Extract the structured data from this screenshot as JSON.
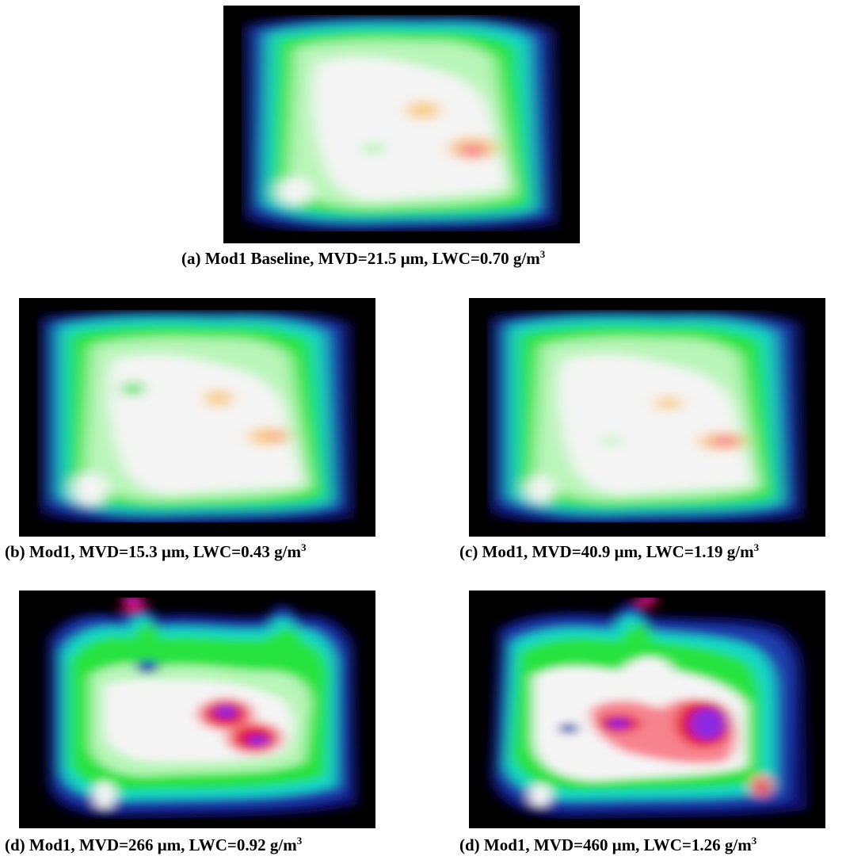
{
  "figure": {
    "panels": [
      {
        "label": "(a) Mod1 Baseline, MVD=21.5 μm, LWC=0.70 g/m",
        "sup": "3",
        "pattern": "baseline"
      },
      {
        "label": "(b) Mod1, MVD=15.3 μm, LWC=0.43 g/m",
        "sup": "3",
        "pattern": "small-drop"
      },
      {
        "label": "(c) Mod1, MVD=40.9 μm, LWC=1.19 g/m",
        "sup": "3",
        "pattern": "medium-drop"
      },
      {
        "label": "(d) Mod1, MVD=266 μm, LWC=0.92 g/m",
        "sup": "3",
        "pattern": "large-drop"
      },
      {
        "label": "(d) Mod1, MVD=460 μm, LWC=1.26 g/m",
        "sup": "3",
        "pattern": "xlarge-drop"
      }
    ],
    "colormap": [
      "#000000",
      "#0a0a6e",
      "#1f3fae",
      "#13d7c8",
      "#27e33f",
      "#b8f5b8",
      "#f5f5f5",
      "#f8cf8a",
      "#f7838e",
      "#e3001a",
      "#8a2be2"
    ]
  }
}
